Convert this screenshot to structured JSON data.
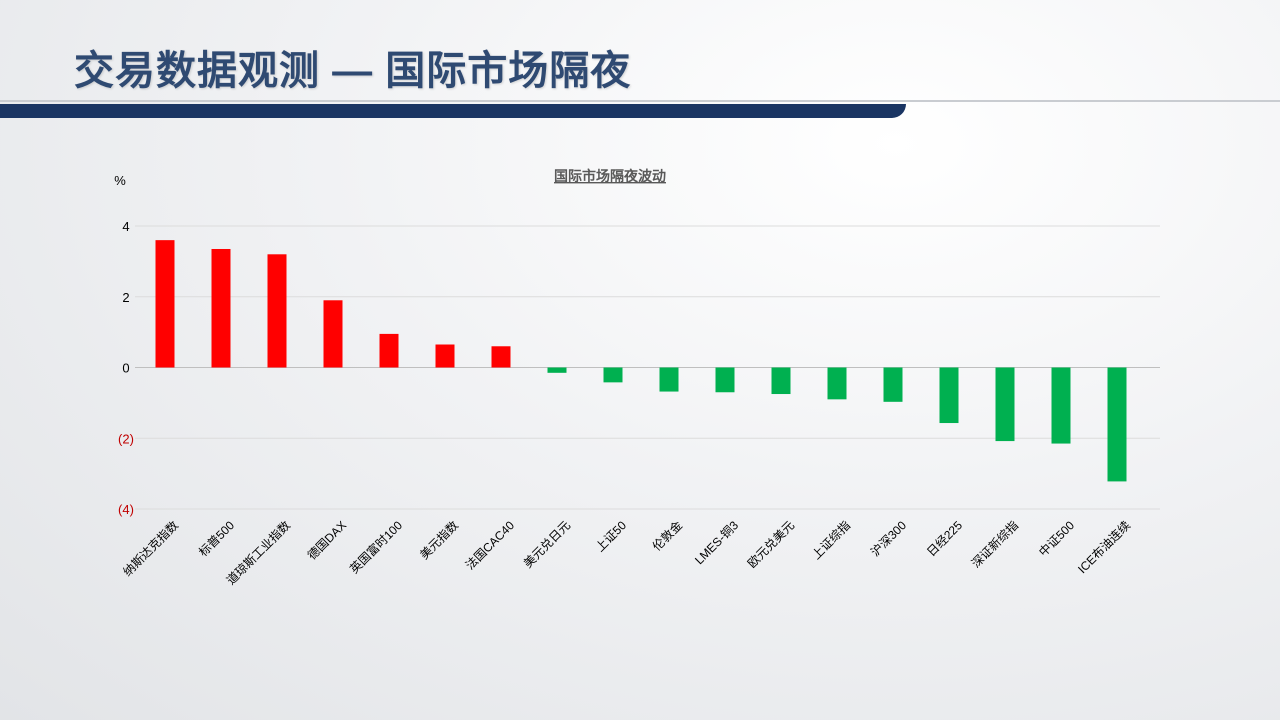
{
  "page": {
    "title": "交易数据观测 — 国际市场隔夜"
  },
  "chart_data": {
    "type": "bar",
    "title": "国际市场隔夜波动",
    "ylabel": "%",
    "ylim": [
      -4,
      4
    ],
    "yticks": [
      4,
      2,
      0,
      -2,
      -4
    ],
    "ytick_labels": [
      "4",
      "2",
      "0",
      "(2)",
      "(4)"
    ],
    "grid": true,
    "legend": "none",
    "colors": {
      "positive": "#ff0000",
      "negative": "#00b050",
      "negative_tick": "#c00000"
    },
    "categories": [
      "纳斯达克指数",
      "标普500",
      "道琼斯工业指数",
      "德国DAX",
      "英国富时100",
      "美元指数",
      "法国CAC40",
      "美元兑日元",
      "上证50",
      "伦敦金",
      "LMES-铜3",
      "欧元兑美元",
      "上证综指",
      "沪深300",
      "日经225",
      "深证新综指",
      "中证500",
      "ICE布油连续"
    ],
    "values": [
      3.6,
      3.35,
      3.2,
      1.9,
      0.95,
      0.65,
      0.6,
      -0.15,
      -0.42,
      -0.68,
      -0.7,
      -0.75,
      -0.9,
      -0.97,
      -1.57,
      -2.08,
      -2.15,
      -3.22
    ]
  }
}
